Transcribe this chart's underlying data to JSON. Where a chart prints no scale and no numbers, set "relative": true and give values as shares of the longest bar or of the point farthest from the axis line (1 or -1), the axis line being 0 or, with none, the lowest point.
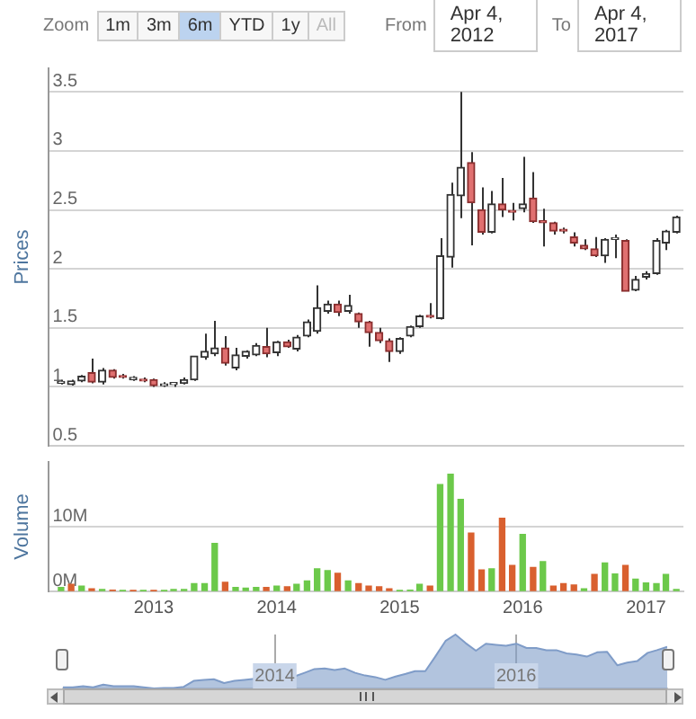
{
  "chart_data": [
    {
      "type": "other",
      "annotations": [
        "Zoom",
        "1m",
        "3m",
        "6m",
        "YTD",
        "1y",
        "All",
        "From",
        "Apr 4, 2012",
        "To",
        "Apr 4, 2017"
      ]
    },
    {
      "type": "candlestick",
      "ylabel": "Prices",
      "grid": "y",
      "tick_labels": "y",
      "xlim": [
        "2012-02-25",
        "2017-04-22"
      ],
      "xticks": [
        "2013",
        "2014",
        "2015",
        "2016",
        "2017"
      ],
      "ylim": [
        0.5,
        3.7
      ],
      "yticks": [
        0.5,
        1,
        1.5,
        2,
        2.5,
        3,
        3.5
      ],
      "x": [
        "2012-04",
        "2012-05",
        "2012-06",
        "2012-07",
        "2012-08",
        "2012-09",
        "2012-10",
        "2012-11",
        "2012-12",
        "2013-01",
        "2013-02",
        "2013-03",
        "2013-04",
        "2013-05",
        "2013-06",
        "2013-07",
        "2013-08",
        "2013-09",
        "2013-10",
        "2013-11",
        "2013-12",
        "2014-01",
        "2014-02",
        "2014-03",
        "2014-04",
        "2014-05",
        "2014-06",
        "2014-07",
        "2014-08",
        "2014-09",
        "2014-10",
        "2014-11",
        "2014-12",
        "2015-01",
        "2015-02",
        "2015-03",
        "2015-04",
        "2015-05",
        "2015-06",
        "2015-07",
        "2015-08",
        "2015-09",
        "2015-10",
        "2015-11",
        "2015-12",
        "2016-01",
        "2016-02",
        "2016-03",
        "2016-04",
        "2016-05",
        "2016-06",
        "2016-07",
        "2016-08",
        "2016-09",
        "2016-10",
        "2016-11",
        "2016-12",
        "2017-01",
        "2017-02",
        "2017-03",
        "2017-04"
      ],
      "ohlc": [
        [
          1.03,
          1.06,
          1.02,
          1.04
        ],
        [
          1.02,
          1.06,
          1.01,
          1.05
        ],
        [
          1.05,
          1.1,
          1.04,
          1.09
        ],
        [
          1.12,
          1.24,
          1.03,
          1.04
        ],
        [
          1.04,
          1.16,
          1.02,
          1.14
        ],
        [
          1.14,
          1.15,
          1.07,
          1.08
        ],
        [
          1.09,
          1.11,
          1.07,
          1.08
        ],
        [
          1.06,
          1.09,
          1.05,
          1.08
        ],
        [
          1.06,
          1.08,
          1.04,
          1.05
        ],
        [
          1.06,
          1.07,
          1.0,
          1.01
        ],
        [
          1.01,
          1.04,
          1.0,
          1.02
        ],
        [
          1.02,
          1.04,
          1.0,
          1.03
        ],
        [
          1.03,
          1.08,
          1.02,
          1.06
        ],
        [
          1.06,
          1.26,
          1.05,
          1.26
        ],
        [
          1.25,
          1.45,
          1.23,
          1.3
        ],
        [
          1.28,
          1.56,
          1.26,
          1.33
        ],
        [
          1.33,
          1.43,
          1.18,
          1.2
        ],
        [
          1.16,
          1.33,
          1.14,
          1.27
        ],
        [
          1.26,
          1.31,
          1.24,
          1.3
        ],
        [
          1.27,
          1.37,
          1.26,
          1.35
        ],
        [
          1.34,
          1.5,
          1.25,
          1.28
        ],
        [
          1.29,
          1.39,
          1.26,
          1.38
        ],
        [
          1.38,
          1.4,
          1.33,
          1.34
        ],
        [
          1.32,
          1.44,
          1.3,
          1.42
        ],
        [
          1.43,
          1.57,
          1.42,
          1.55
        ],
        [
          1.47,
          1.86,
          1.45,
          1.67
        ],
        [
          1.64,
          1.73,
          1.62,
          1.7
        ],
        [
          1.7,
          1.73,
          1.6,
          1.63
        ],
        [
          1.64,
          1.78,
          1.62,
          1.69
        ],
        [
          1.62,
          1.63,
          1.5,
          1.55
        ],
        [
          1.55,
          1.56,
          1.34,
          1.46
        ],
        [
          1.46,
          1.5,
          1.37,
          1.39
        ],
        [
          1.39,
          1.41,
          1.21,
          1.3
        ],
        [
          1.3,
          1.42,
          1.28,
          1.41
        ],
        [
          1.43,
          1.52,
          1.42,
          1.51
        ],
        [
          1.51,
          1.61,
          1.5,
          1.6
        ],
        [
          1.6,
          1.71,
          1.58,
          1.59
        ],
        [
          1.58,
          2.26,
          1.57,
          2.11
        ],
        [
          2.1,
          2.73,
          2.01,
          2.63
        ],
        [
          2.62,
          3.5,
          2.43,
          2.86
        ],
        [
          2.9,
          2.99,
          2.2,
          2.56
        ],
        [
          2.5,
          2.69,
          2.29,
          2.31
        ],
        [
          2.31,
          2.66,
          2.3,
          2.55
        ],
        [
          2.55,
          2.77,
          2.44,
          2.5
        ],
        [
          2.49,
          2.56,
          2.41,
          2.48
        ],
        [
          2.51,
          2.95,
          2.48,
          2.55
        ],
        [
          2.6,
          2.82,
          2.39,
          2.4
        ],
        [
          2.41,
          2.51,
          2.19,
          2.39
        ],
        [
          2.39,
          2.4,
          2.29,
          2.32
        ],
        [
          2.33,
          2.35,
          2.3,
          2.32
        ],
        [
          2.27,
          2.31,
          2.19,
          2.22
        ],
        [
          2.2,
          2.25,
          2.16,
          2.17
        ],
        [
          2.17,
          2.27,
          2.1,
          2.11
        ],
        [
          2.11,
          2.26,
          2.05,
          2.25
        ],
        [
          2.25,
          2.29,
          2.09,
          2.26
        ],
        [
          2.24,
          2.25,
          1.81,
          1.81
        ],
        [
          1.82,
          1.94,
          1.81,
          1.91
        ],
        [
          1.93,
          1.98,
          1.91,
          1.96
        ],
        [
          1.96,
          2.26,
          1.95,
          2.24
        ],
        [
          2.22,
          2.33,
          2.16,
          2.32
        ],
        [
          2.31,
          2.45,
          2.3,
          2.44
        ]
      ]
    },
    {
      "type": "bar",
      "ylabel": "Volume",
      "grid": "y",
      "xlim": [
        "2012-02-25",
        "2017-04-22"
      ],
      "xticks": [
        "2013",
        "2014",
        "2015",
        "2016",
        "2017"
      ],
      "ylim": [
        0,
        20000000
      ],
      "yticks": [
        {
          "value": 0,
          "label": "0M"
        },
        {
          "value": 10000000,
          "label": "10M"
        }
      ],
      "x": [
        "2012-04",
        "2012-05",
        "2012-06",
        "2012-07",
        "2012-08",
        "2012-09",
        "2012-10",
        "2012-11",
        "2012-12",
        "2013-01",
        "2013-02",
        "2013-03",
        "2013-04",
        "2013-05",
        "2013-06",
        "2013-07",
        "2013-08",
        "2013-09",
        "2013-10",
        "2013-11",
        "2013-12",
        "2014-01",
        "2014-02",
        "2014-03",
        "2014-04",
        "2014-05",
        "2014-06",
        "2014-07",
        "2014-08",
        "2014-09",
        "2014-10",
        "2014-11",
        "2014-12",
        "2015-01",
        "2015-02",
        "2015-03",
        "2015-04",
        "2015-05",
        "2015-06",
        "2015-07",
        "2015-08",
        "2015-09",
        "2015-10",
        "2015-11",
        "2015-12",
        "2016-01",
        "2016-02",
        "2016-03",
        "2016-04",
        "2016-05",
        "2016-06",
        "2016-07",
        "2016-08",
        "2016-09",
        "2016-10",
        "2016-11",
        "2016-12",
        "2017-01",
        "2017-02",
        "2017-03",
        "2017-04"
      ],
      "values": [
        600000,
        1100000,
        800000,
        400000,
        300000,
        200000,
        100000,
        100000,
        100000,
        100000,
        100000,
        300000,
        300000,
        1200000,
        1200000,
        7400000,
        1400000,
        600000,
        500000,
        600000,
        600000,
        800000,
        700000,
        1100000,
        1600000,
        3500000,
        3200000,
        2800000,
        1600000,
        1200000,
        800000,
        700000,
        400000,
        100000,
        200000,
        1100000,
        800000,
        16500000,
        18100000,
        14200000,
        9000000,
        3300000,
        3500000,
        11300000,
        4000000,
        8800000,
        3700000,
        4600000,
        800000,
        1200000,
        1000000,
        400000,
        2600000,
        4400000,
        2700000,
        4000000,
        1900000,
        1300000,
        1200000,
        2600000,
        300000
      ],
      "colors": [
        "#6cc94a",
        "#d9602f",
        "#6cc94a",
        "#d9602f",
        "#6cc94a",
        "#d9602f",
        "#6cc94a",
        "#d9602f",
        "#6cc94a",
        "#d9602f",
        "#6cc94a",
        "#6cc94a",
        "#6cc94a",
        "#6cc94a",
        "#6cc94a",
        "#6cc94a",
        "#d9602f",
        "#6cc94a",
        "#6cc94a",
        "#6cc94a",
        "#d9602f",
        "#6cc94a",
        "#d9602f",
        "#6cc94a",
        "#6cc94a",
        "#6cc94a",
        "#6cc94a",
        "#d9602f",
        "#6cc94a",
        "#d9602f",
        "#d9602f",
        "#d9602f",
        "#d9602f",
        "#6cc94a",
        "#6cc94a",
        "#6cc94a",
        "#d9602f",
        "#6cc94a",
        "#6cc94a",
        "#6cc94a",
        "#d9602f",
        "#d9602f",
        "#6cc94a",
        "#d9602f",
        "#d9602f",
        "#6cc94a",
        "#d9602f",
        "#6cc94a",
        "#d9602f",
        "#d9602f",
        "#d9602f",
        "#6cc94a",
        "#d9602f",
        "#6cc94a",
        "#6cc94a",
        "#d9602f",
        "#6cc94a",
        "#6cc94a",
        "#6cc94a",
        "#6cc94a",
        "#6cc94a"
      ]
    },
    {
      "type": "area",
      "relative": true,
      "grid": "x",
      "tick_labels": "x",
      "color": "#7f9cc8",
      "xlim": [
        "2012-04",
        "2017-04"
      ],
      "xticks": [
        "2014",
        "2016"
      ],
      "x": [
        "2012-04",
        "2012-05",
        "2012-06",
        "2012-07",
        "2012-08",
        "2012-09",
        "2012-10",
        "2012-11",
        "2012-12",
        "2013-01",
        "2013-02",
        "2013-03",
        "2013-04",
        "2013-05",
        "2013-06",
        "2013-07",
        "2013-08",
        "2013-09",
        "2013-10",
        "2013-11",
        "2013-12",
        "2014-01",
        "2014-02",
        "2014-03",
        "2014-04",
        "2014-05",
        "2014-06",
        "2014-07",
        "2014-08",
        "2014-09",
        "2014-10",
        "2014-11",
        "2014-12",
        "2015-01",
        "2015-02",
        "2015-03",
        "2015-04",
        "2015-05",
        "2015-06",
        "2015-07",
        "2015-08",
        "2015-09",
        "2015-10",
        "2015-11",
        "2015-12",
        "2016-01",
        "2016-02",
        "2016-03",
        "2016-04",
        "2016-05",
        "2016-06",
        "2016-07",
        "2016-08",
        "2016-09",
        "2016-10",
        "2016-11",
        "2016-12",
        "2017-01",
        "2017-02",
        "2017-03",
        "2017-04"
      ],
      "values": [
        0.02,
        0.02,
        0.04,
        0.02,
        0.07,
        0.04,
        0.04,
        0.04,
        0.02,
        0,
        0.01,
        0.01,
        0.03,
        0.14,
        0.16,
        0.17,
        0.1,
        0.14,
        0.16,
        0.18,
        0.15,
        0.2,
        0.18,
        0.22,
        0.29,
        0.36,
        0.37,
        0.34,
        0.37,
        0.29,
        0.24,
        0.21,
        0.16,
        0.22,
        0.27,
        0.32,
        0.32,
        0.59,
        0.88,
        1,
        0.84,
        0.7,
        0.83,
        0.81,
        0.79,
        0.83,
        0.75,
        0.75,
        0.71,
        0.71,
        0.65,
        0.63,
        0.59,
        0.67,
        0.68,
        0.43,
        0.48,
        0.51,
        0.66,
        0.71,
        0.77
      ]
    }
  ]
}
